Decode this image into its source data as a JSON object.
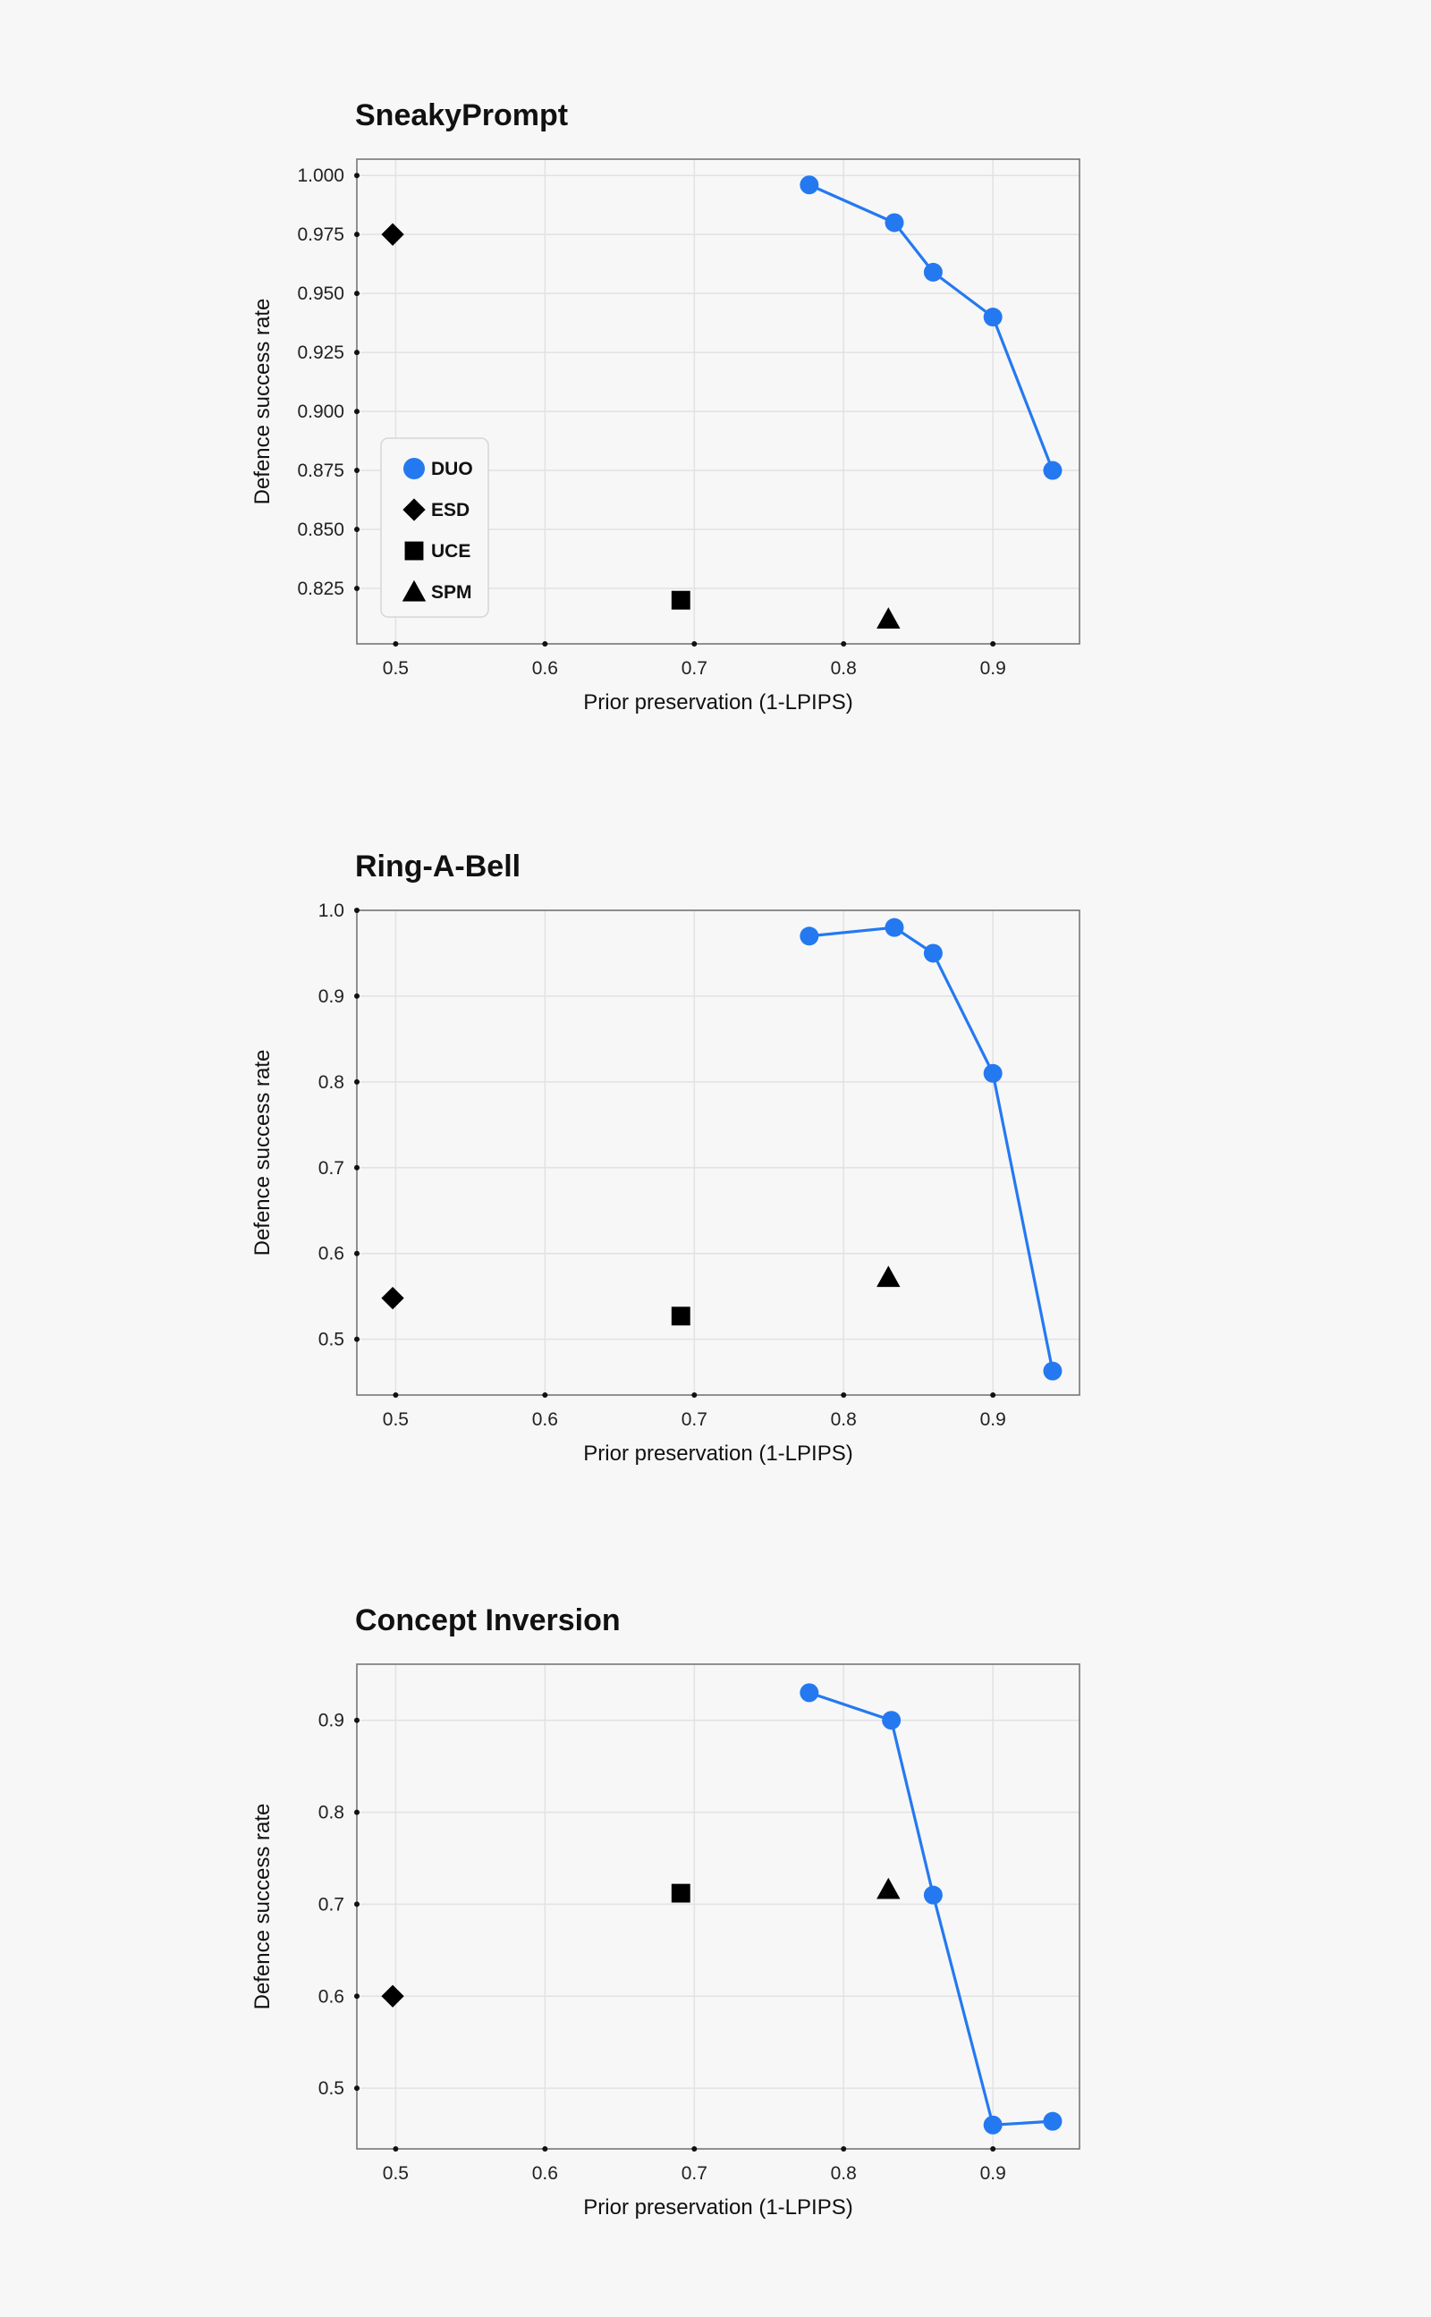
{
  "colors": {
    "duo": "#2479f0",
    "marker": "#000000",
    "grid": "#e2e2e2",
    "frame": "#777777",
    "background": "#f7f7f7"
  },
  "legend": {
    "placement": "left",
    "items": [
      {
        "label": "DUO",
        "marker": "circle",
        "color": "#2479f0"
      },
      {
        "label": "ESD",
        "marker": "diamond",
        "color": "#000000"
      },
      {
        "label": "UCE",
        "marker": "square",
        "color": "#000000"
      },
      {
        "label": "SPM",
        "marker": "triangle",
        "color": "#000000"
      }
    ]
  },
  "chart_data": [
    {
      "type": "scatter",
      "title": "SneakyPrompt",
      "xlabel": "Prior preservation (1-LPIPS)",
      "ylabel": "Defence success rate",
      "xlim": [
        0.474,
        0.958
      ],
      "ylim": [
        0.8015,
        1.0069
      ],
      "xticks": [
        0.5,
        0.6,
        0.7,
        0.8,
        0.9
      ],
      "xtick_labels": [
        "0.5",
        "0.6",
        "0.7",
        "0.8",
        "0.9"
      ],
      "yticks": [
        0.825,
        0.85,
        0.875,
        0.9,
        0.925,
        0.95,
        0.975,
        1.0
      ],
      "ytick_labels": [
        "0.825",
        "0.850",
        "0.875",
        "0.900",
        "0.925",
        "0.950",
        "0.975",
        "1.000"
      ],
      "grid": true,
      "legend": true,
      "series": [
        {
          "name": "DUO",
          "marker": "circle",
          "line": true,
          "x": [
            0.777,
            0.834,
            0.86,
            0.9,
            0.94
          ],
          "y": [
            0.996,
            0.98,
            0.959,
            0.94,
            0.875
          ]
        },
        {
          "name": "ESD",
          "marker": "diamond",
          "line": false,
          "x": [
            0.498
          ],
          "y": [
            0.975
          ]
        },
        {
          "name": "UCE",
          "marker": "square",
          "line": false,
          "x": [
            0.691
          ],
          "y": [
            0.82
          ]
        },
        {
          "name": "SPM",
          "marker": "triangle",
          "line": false,
          "x": [
            0.83
          ],
          "y": [
            0.812
          ]
        }
      ]
    },
    {
      "type": "scatter",
      "title": "Ring-A-Bell",
      "xlabel": "Prior preservation (1-LPIPS)",
      "ylabel": "Defence success rate",
      "xlim": [
        0.474,
        0.958
      ],
      "ylim": [
        0.435,
        1.0
      ],
      "xticks": [
        0.5,
        0.6,
        0.7,
        0.8,
        0.9
      ],
      "xtick_labels": [
        "0.5",
        "0.6",
        "0.7",
        "0.8",
        "0.9"
      ],
      "yticks": [
        0.5,
        0.6,
        0.7,
        0.8,
        0.9,
        1.0
      ],
      "ytick_labels": [
        "0.5",
        "0.6",
        "0.7",
        "0.8",
        "0.9",
        "1.0"
      ],
      "grid": true,
      "legend": false,
      "series": [
        {
          "name": "DUO",
          "marker": "circle",
          "line": true,
          "x": [
            0.777,
            0.834,
            0.86,
            0.9,
            0.94
          ],
          "y": [
            0.97,
            0.98,
            0.95,
            0.81,
            0.463
          ]
        },
        {
          "name": "ESD",
          "marker": "diamond",
          "line": false,
          "x": [
            0.498
          ],
          "y": [
            0.548
          ]
        },
        {
          "name": "UCE",
          "marker": "square",
          "line": false,
          "x": [
            0.691
          ],
          "y": [
            0.527
          ]
        },
        {
          "name": "SPM",
          "marker": "triangle",
          "line": false,
          "x": [
            0.83
          ],
          "y": [
            0.572
          ]
        }
      ]
    },
    {
      "type": "scatter",
      "title": "Concept Inversion",
      "xlabel": "Prior preservation (1-LPIPS)",
      "ylabel": "Defence success rate",
      "xlim": [
        0.474,
        0.958
      ],
      "ylim": [
        0.434,
        0.961
      ],
      "xticks": [
        0.5,
        0.6,
        0.7,
        0.8,
        0.9
      ],
      "xtick_labels": [
        "0.5",
        "0.6",
        "0.7",
        "0.8",
        "0.9"
      ],
      "yticks": [
        0.5,
        0.6,
        0.7,
        0.8,
        0.9
      ],
      "ytick_labels": [
        "0.5",
        "0.6",
        "0.7",
        "0.8",
        "0.9"
      ],
      "grid": true,
      "legend": false,
      "series": [
        {
          "name": "DUO",
          "marker": "circle",
          "line": true,
          "x": [
            0.777,
            0.832,
            0.86,
            0.9,
            0.94
          ],
          "y": [
            0.93,
            0.9,
            0.71,
            0.46,
            0.464
          ]
        },
        {
          "name": "ESD",
          "marker": "diamond",
          "line": false,
          "x": [
            0.498
          ],
          "y": [
            0.6
          ]
        },
        {
          "name": "UCE",
          "marker": "square",
          "line": false,
          "x": [
            0.691
          ],
          "y": [
            0.712
          ]
        },
        {
          "name": "SPM",
          "marker": "triangle",
          "line": false,
          "x": [
            0.83
          ],
          "y": [
            0.716
          ]
        }
      ]
    }
  ]
}
